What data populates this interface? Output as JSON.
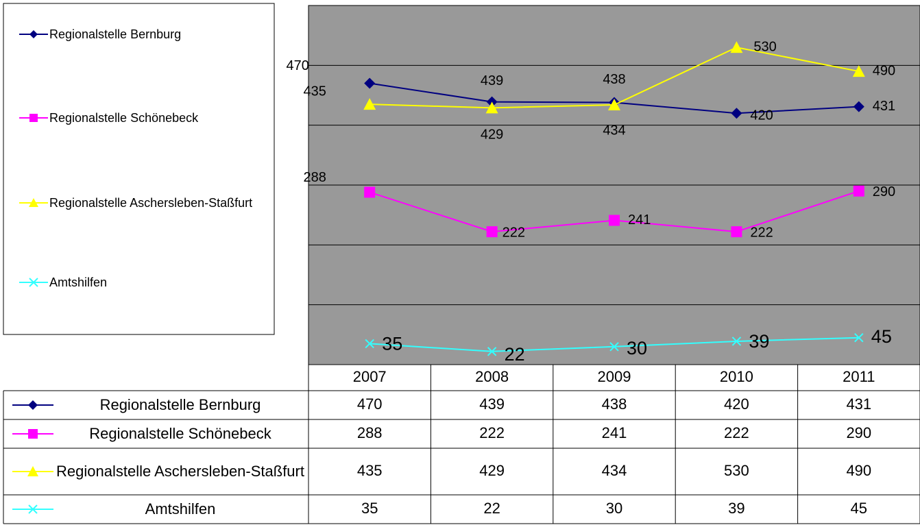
{
  "chart_data": {
    "type": "line",
    "categories": [
      "2007",
      "2008",
      "2009",
      "2010",
      "2011"
    ],
    "series": [
      {
        "name": "Regionalstelle Bernburg",
        "color": "#000080",
        "marker": "diamond",
        "values": [
          470,
          439,
          438,
          420,
          431
        ]
      },
      {
        "name": "Regionalstelle Schönebeck",
        "color": "#ff00ff",
        "marker": "square",
        "values": [
          288,
          222,
          241,
          222,
          290
        ]
      },
      {
        "name": "Regionalstelle Aschersleben-Staßfurt",
        "color": "#ffff00",
        "marker": "triangle",
        "values": [
          435,
          429,
          434,
          530,
          490
        ]
      },
      {
        "name": "Amtshilfen",
        "color": "#33ffff",
        "marker": "x",
        "values": [
          35,
          22,
          30,
          39,
          45
        ]
      }
    ],
    "ylim": [
      0,
      600
    ],
    "yticks": [
      0,
      100,
      200,
      300,
      400,
      500,
      600
    ],
    "grid": true
  }
}
